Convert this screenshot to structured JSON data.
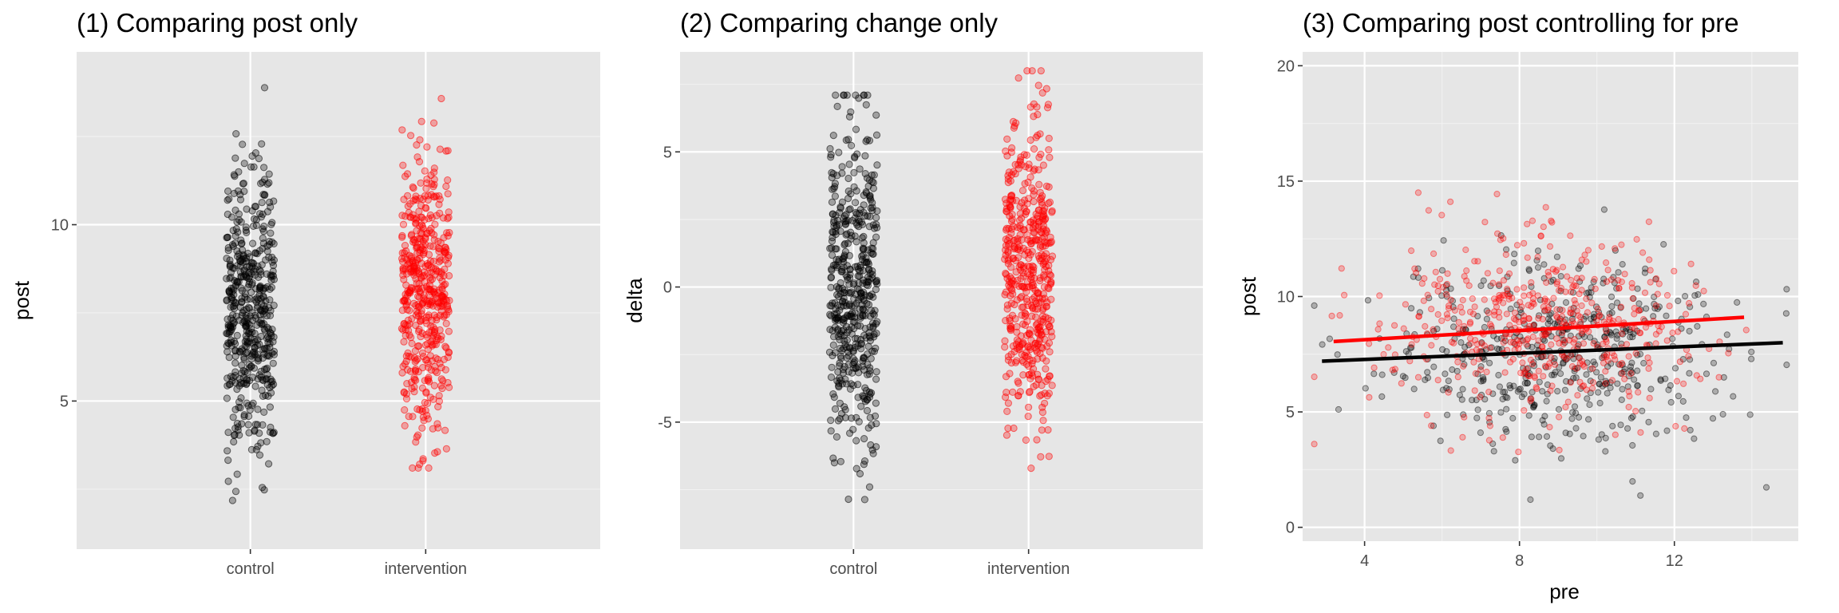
{
  "figure": {
    "colors": {
      "control": "#000000",
      "intervention": "#ff0000",
      "panel": "#e6e6e6",
      "grid": "#ffffff"
    }
  },
  "chart_data": [
    {
      "type": "scatter",
      "subtype": "jitter",
      "title": "(1) Comparing post only",
      "xlabel": "",
      "ylabel": "post",
      "categories": [
        "control",
        "intervention"
      ],
      "ylim": [
        0.8,
        14.9
      ],
      "yticks": [
        5,
        10
      ],
      "grid": true,
      "series": [
        {
          "name": "control",
          "color": "#000000",
          "n": 500,
          "summary": {
            "mean": 7.5,
            "sd": 2.0,
            "min": 1.4,
            "max": 14.3
          }
        },
        {
          "name": "intervention",
          "color": "#ff0000",
          "n": 500,
          "summary": {
            "mean": 8.2,
            "sd": 2.0,
            "min": 3.1,
            "max": 14.0
          }
        }
      ]
    },
    {
      "type": "scatter",
      "subtype": "jitter",
      "title": "(2) Comparing change only",
      "xlabel": "",
      "ylabel": "delta",
      "categories": [
        "control",
        "intervention"
      ],
      "ylim": [
        -9.7,
        8.7
      ],
      "yticks": [
        -5,
        0,
        5
      ],
      "grid": true,
      "series": [
        {
          "name": "control",
          "color": "#000000",
          "n": 500,
          "summary": {
            "mean": -0.3,
            "sd": 2.9,
            "min": -8.9,
            "max": 7.1
          }
        },
        {
          "name": "intervention",
          "color": "#ff0000",
          "n": 500,
          "summary": {
            "mean": 0.4,
            "sd": 2.9,
            "min": -7.7,
            "max": 8.0
          }
        }
      ]
    },
    {
      "type": "scatter",
      "title": "(3) Comparing post controlling for pre",
      "xlabel": "pre",
      "ylabel": "post",
      "xlim": [
        2.4,
        15.2
      ],
      "ylim": [
        -0.6,
        20.6
      ],
      "xticks": [
        4,
        8,
        12
      ],
      "yticks": [
        0,
        5,
        10,
        15,
        20
      ],
      "grid": true,
      "series": [
        {
          "name": "control",
          "color": "#000000",
          "n": 500,
          "summary": {
            "x_mean": 8.9,
            "x_sd": 2.1,
            "y_mean": 7.6,
            "y_sd": 2.0
          }
        },
        {
          "name": "intervention",
          "color": "#ff0000",
          "n": 500,
          "summary": {
            "x_mean": 8.5,
            "x_sd": 2.1,
            "y_mean": 8.6,
            "y_sd": 2.0
          }
        }
      ],
      "fit_lines": [
        {
          "name": "control",
          "color": "#000000",
          "x": [
            2.9,
            14.8
          ],
          "y": [
            7.2,
            8.0
          ]
        },
        {
          "name": "intervention",
          "color": "#ff0000",
          "x": [
            3.2,
            13.8
          ],
          "y": [
            8.05,
            9.1
          ]
        }
      ]
    }
  ]
}
